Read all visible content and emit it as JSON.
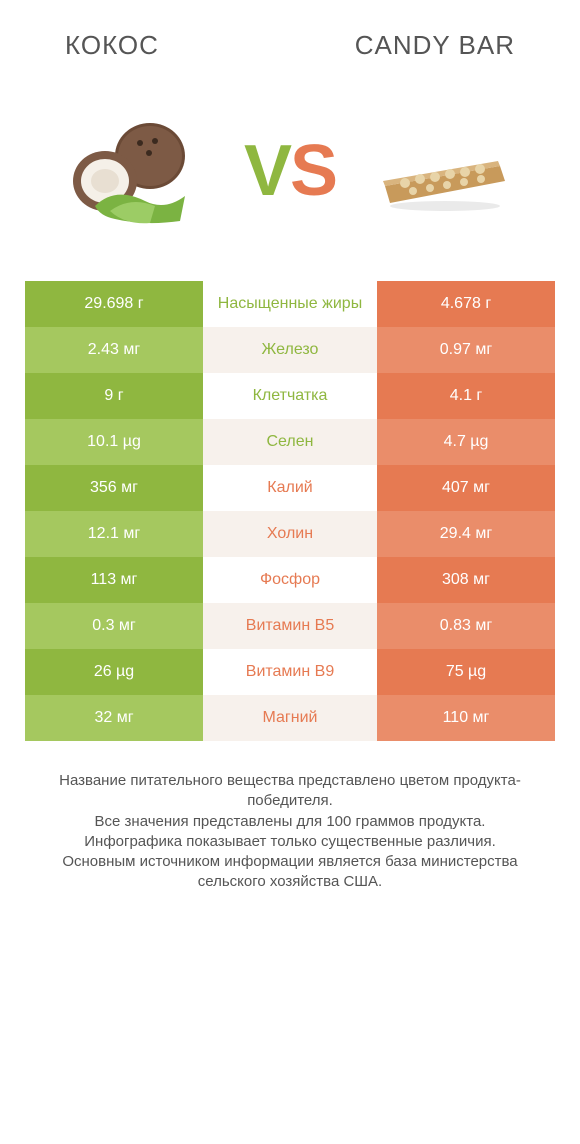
{
  "left_title": "КОКОС",
  "right_title": "CANDY BAR",
  "vs_left": "V",
  "vs_right": "S",
  "colors": {
    "green_dark": "#8fb740",
    "green_light": "#a5c85f",
    "orange_dark": "#e67a52",
    "orange_light": "#ea8d6a",
    "mid_text_green": "#8fb740",
    "mid_text_orange": "#e67a52",
    "mid_bg_a": "#ffffff",
    "mid_bg_b": "#f7f1ec"
  },
  "rows": [
    {
      "left": "29.698 г",
      "label": "Насыщенные жиры",
      "right": "4.678 г",
      "winner": "left"
    },
    {
      "left": "2.43 мг",
      "label": "Железо",
      "right": "0.97 мг",
      "winner": "left"
    },
    {
      "left": "9 г",
      "label": "Клетчатка",
      "right": "4.1 г",
      "winner": "left"
    },
    {
      "left": "10.1 µg",
      "label": "Селен",
      "right": "4.7 µg",
      "winner": "left"
    },
    {
      "left": "356 мг",
      "label": "Калий",
      "right": "407 мг",
      "winner": "right"
    },
    {
      "left": "12.1 мг",
      "label": "Холин",
      "right": "29.4 мг",
      "winner": "right"
    },
    {
      "left": "113 мг",
      "label": "Фосфор",
      "right": "308 мг",
      "winner": "right"
    },
    {
      "left": "0.3 мг",
      "label": "Витамин B5",
      "right": "0.83 мг",
      "winner": "right"
    },
    {
      "left": "26 µg",
      "label": "Витамин B9",
      "right": "75 µg",
      "winner": "right"
    },
    {
      "left": "32 мг",
      "label": "Магний",
      "right": "110 мг",
      "winner": "right"
    }
  ],
  "footer_lines": [
    "Название питательного вещества представлено цветом продукта-победителя.",
    "Все значения представлены для 100 граммов продукта.",
    "Инфографика показывает только существенные различия.",
    "Основным источником информации является база министерства сельского хозяйства США."
  ]
}
